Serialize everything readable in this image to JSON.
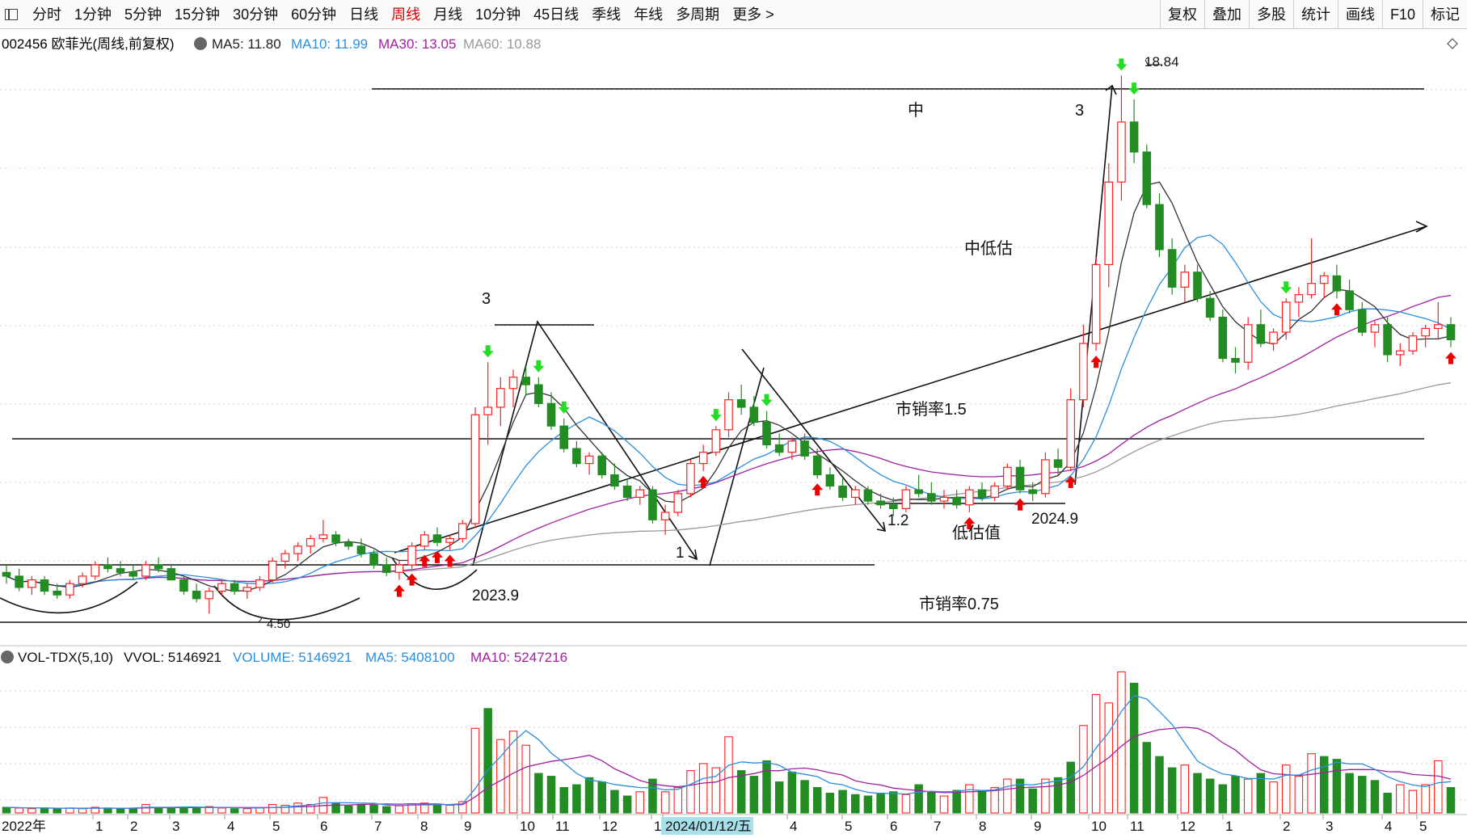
{
  "toolbar": {
    "items": [
      {
        "label": "分时"
      },
      {
        "label": "1分钟"
      },
      {
        "label": "5分钟"
      },
      {
        "label": "15分钟"
      },
      {
        "label": "30分钟"
      },
      {
        "label": "60分钟"
      },
      {
        "label": "日线"
      },
      {
        "label": "周线",
        "active": true
      },
      {
        "label": "月线"
      },
      {
        "label": "10分钟"
      },
      {
        "label": "45日线"
      },
      {
        "label": "季线"
      },
      {
        "label": "年线"
      },
      {
        "label": "多周期"
      },
      {
        "label": "更多 >"
      }
    ],
    "right_items": [
      {
        "label": "复权"
      },
      {
        "label": "叠加"
      },
      {
        "label": "多股"
      },
      {
        "label": "统计"
      },
      {
        "label": "画线"
      },
      {
        "label": "F10"
      },
      {
        "label": "标记"
      }
    ]
  },
  "main_info": {
    "title": "002456 欧菲光(周线,前复权)",
    "ma5": "MA5: 11.80",
    "ma10": "MA10: 11.99",
    "ma30": "MA30: 13.05",
    "ma60": "MA60: 10.88"
  },
  "vol_info": {
    "title": "VOL-TDX(5,10)",
    "vvol": "VVOL: 5146921",
    "volume": "VOLUME: 5146921",
    "ma5": "MA5: 5408100",
    "ma10": "MA10: 5247216"
  },
  "annotations": {
    "high_label": "18.84",
    "low_label": "4.50",
    "zhong": "中",
    "num3_right": "3",
    "zhongdigu": "中低估",
    "num3_left": "3",
    "shixiaolv15": "市销率1.5",
    "num12": "1.2",
    "didigu": "低估值",
    "date2024_9": "2024.9",
    "num1": "1",
    "date2023_9": "2023.9",
    "shixiaolv075": "市销率0.75"
  },
  "x_axis": {
    "year_label": "2022年",
    "ticks": [
      "1",
      "2",
      "3",
      "4",
      "5",
      "6",
      "7",
      "8",
      "9",
      "10",
      "11",
      "12",
      "1",
      "2024/01/12/五",
      "4",
      "5",
      "6",
      "7",
      "8",
      "9",
      "10",
      "11",
      "12",
      "1",
      "2",
      "3",
      "4",
      "5"
    ]
  },
  "colors": {
    "up": "#ff2020",
    "down": "#238c23",
    "ma5": "#333333",
    "ma10": "#2a8fdf",
    "ma30": "#a020a0",
    "ma60": "#999999",
    "buy_arrow": "#ee0000",
    "sell_arrow": "#22dd22"
  },
  "chart_data": {
    "type": "candlestick",
    "title": "002456 欧菲光(周线,前复权)",
    "period": "weekly",
    "x_range": [
      "2022-01",
      "2025-05"
    ],
    "price_range": [
      4.5,
      18.84
    ],
    "annotated_high": 18.84,
    "annotated_low": 4.5,
    "levels": [
      {
        "name": "市销率0.75"
      },
      {
        "name": "市销率1.5"
      },
      {
        "name": "中"
      }
    ],
    "indicators": {
      "MA5": 11.8,
      "MA10": 11.99,
      "MA30": 13.05,
      "MA60": 10.88,
      "VVOL": 5146921,
      "VOLUME": 5146921,
      "VOL_MA5": 5408100,
      "VOL_MA10": 5247216
    },
    "candles": [
      {
        "o": 5.6,
        "h": 5.8,
        "l": 5.3,
        "c": 5.5
      },
      {
        "o": 5.5,
        "h": 5.7,
        "l": 5.1,
        "c": 5.2
      },
      {
        "o": 5.2,
        "h": 5.5,
        "l": 5.0,
        "c": 5.4
      },
      {
        "o": 5.4,
        "h": 5.5,
        "l": 5.0,
        "c": 5.1
      },
      {
        "o": 5.1,
        "h": 5.3,
        "l": 4.9,
        "c": 5.0
      },
      {
        "o": 5.0,
        "h": 5.4,
        "l": 4.9,
        "c": 5.3
      },
      {
        "o": 5.3,
        "h": 5.6,
        "l": 5.2,
        "c": 5.5
      },
      {
        "o": 5.5,
        "h": 5.9,
        "l": 5.4,
        "c": 5.8
      },
      {
        "o": 5.8,
        "h": 6.0,
        "l": 5.6,
        "c": 5.7
      },
      {
        "o": 5.7,
        "h": 5.9,
        "l": 5.5,
        "c": 5.6
      },
      {
        "o": 5.6,
        "h": 5.8,
        "l": 5.4,
        "c": 5.5
      },
      {
        "o": 5.5,
        "h": 5.9,
        "l": 5.4,
        "c": 5.8
      },
      {
        "o": 5.8,
        "h": 6.0,
        "l": 5.6,
        "c": 5.7
      },
      {
        "o": 5.7,
        "h": 5.8,
        "l": 5.4,
        "c": 5.4
      },
      {
        "o": 5.4,
        "h": 5.5,
        "l": 5.0,
        "c": 5.1
      },
      {
        "o": 5.1,
        "h": 5.3,
        "l": 4.8,
        "c": 4.9
      },
      {
        "o": 4.9,
        "h": 5.2,
        "l": 4.5,
        "c": 5.1
      },
      {
        "o": 5.1,
        "h": 5.4,
        "l": 5.0,
        "c": 5.3
      },
      {
        "o": 5.3,
        "h": 5.4,
        "l": 5.0,
        "c": 5.1
      },
      {
        "o": 5.1,
        "h": 5.3,
        "l": 4.9,
        "c": 5.2
      },
      {
        "o": 5.2,
        "h": 5.5,
        "l": 5.1,
        "c": 5.4
      },
      {
        "o": 5.4,
        "h": 6.0,
        "l": 5.3,
        "c": 5.9
      },
      {
        "o": 5.9,
        "h": 6.2,
        "l": 5.7,
        "c": 6.1
      },
      {
        "o": 6.1,
        "h": 6.4,
        "l": 5.9,
        "c": 6.3
      },
      {
        "o": 6.3,
        "h": 6.6,
        "l": 6.1,
        "c": 6.5
      },
      {
        "o": 6.5,
        "h": 7.0,
        "l": 6.4,
        "c": 6.6
      },
      {
        "o": 6.6,
        "h": 6.7,
        "l": 6.3,
        "c": 6.4
      },
      {
        "o": 6.4,
        "h": 6.5,
        "l": 6.2,
        "c": 6.3
      },
      {
        "o": 6.3,
        "h": 6.5,
        "l": 6.0,
        "c": 6.1
      },
      {
        "o": 6.1,
        "h": 6.2,
        "l": 5.7,
        "c": 5.8
      },
      {
        "o": 5.8,
        "h": 6.0,
        "l": 5.5,
        "c": 5.6
      },
      {
        "o": 5.6,
        "h": 5.9,
        "l": 5.4,
        "c": 5.8
      },
      {
        "o": 5.8,
        "h": 6.4,
        "l": 5.7,
        "c": 6.3
      },
      {
        "o": 6.3,
        "h": 6.7,
        "l": 6.2,
        "c": 6.6
      },
      {
        "o": 6.6,
        "h": 6.8,
        "l": 6.3,
        "c": 6.4
      },
      {
        "o": 6.4,
        "h": 6.6,
        "l": 6.2,
        "c": 6.5
      },
      {
        "o": 6.5,
        "h": 7.0,
        "l": 6.4,
        "c": 6.9
      },
      {
        "o": 6.9,
        "h": 10.0,
        "l": 6.8,
        "c": 9.8
      },
      {
        "o": 9.8,
        "h": 11.2,
        "l": 9.0,
        "c": 10.0
      },
      {
        "o": 10.0,
        "h": 10.8,
        "l": 9.5,
        "c": 10.5
      },
      {
        "o": 10.5,
        "h": 11.0,
        "l": 10.0,
        "c": 10.8
      },
      {
        "o": 10.8,
        "h": 11.1,
        "l": 10.3,
        "c": 10.6
      },
      {
        "o": 10.6,
        "h": 10.8,
        "l": 10.0,
        "c": 10.1
      },
      {
        "o": 10.1,
        "h": 10.4,
        "l": 9.4,
        "c": 9.5
      },
      {
        "o": 9.5,
        "h": 9.7,
        "l": 8.8,
        "c": 8.9
      },
      {
        "o": 8.9,
        "h": 9.1,
        "l": 8.4,
        "c": 8.5
      },
      {
        "o": 8.5,
        "h": 8.8,
        "l": 8.2,
        "c": 8.7
      },
      {
        "o": 8.7,
        "h": 8.8,
        "l": 8.1,
        "c": 8.2
      },
      {
        "o": 8.2,
        "h": 8.5,
        "l": 7.8,
        "c": 7.9
      },
      {
        "o": 7.9,
        "h": 8.1,
        "l": 7.5,
        "c": 7.6
      },
      {
        "o": 7.6,
        "h": 7.9,
        "l": 7.4,
        "c": 7.8
      },
      {
        "o": 7.8,
        "h": 7.9,
        "l": 6.9,
        "c": 7.0
      },
      {
        "o": 7.0,
        "h": 7.4,
        "l": 6.6,
        "c": 7.2
      },
      {
        "o": 7.2,
        "h": 7.8,
        "l": 7.1,
        "c": 7.7
      },
      {
        "o": 7.7,
        "h": 8.6,
        "l": 7.6,
        "c": 8.5
      },
      {
        "o": 8.5,
        "h": 9.0,
        "l": 8.3,
        "c": 8.8
      },
      {
        "o": 8.8,
        "h": 9.5,
        "l": 8.7,
        "c": 9.4
      },
      {
        "o": 9.4,
        "h": 10.4,
        "l": 9.2,
        "c": 10.2
      },
      {
        "o": 10.2,
        "h": 10.6,
        "l": 9.8,
        "c": 10.0
      },
      {
        "o": 10.0,
        "h": 10.3,
        "l": 9.5,
        "c": 9.6
      },
      {
        "o": 9.6,
        "h": 9.9,
        "l": 8.9,
        "c": 9.0
      },
      {
        "o": 9.0,
        "h": 9.3,
        "l": 8.7,
        "c": 8.8
      },
      {
        "o": 8.8,
        "h": 9.2,
        "l": 8.6,
        "c": 9.1
      },
      {
        "o": 9.1,
        "h": 9.3,
        "l": 8.6,
        "c": 8.7
      },
      {
        "o": 8.7,
        "h": 8.9,
        "l": 8.1,
        "c": 8.2
      },
      {
        "o": 8.2,
        "h": 8.4,
        "l": 7.8,
        "c": 7.9
      },
      {
        "o": 7.9,
        "h": 8.1,
        "l": 7.5,
        "c": 7.6
      },
      {
        "o": 7.6,
        "h": 7.9,
        "l": 7.4,
        "c": 7.8
      },
      {
        "o": 7.8,
        "h": 7.9,
        "l": 7.4,
        "c": 7.5
      },
      {
        "o": 7.5,
        "h": 7.7,
        "l": 7.3,
        "c": 7.4
      },
      {
        "o": 7.4,
        "h": 7.6,
        "l": 7.1,
        "c": 7.3
      },
      {
        "o": 7.3,
        "h": 7.9,
        "l": 7.2,
        "c": 7.8
      },
      {
        "o": 7.8,
        "h": 8.2,
        "l": 7.6,
        "c": 7.7
      },
      {
        "o": 7.7,
        "h": 8.0,
        "l": 7.4,
        "c": 7.5
      },
      {
        "o": 7.5,
        "h": 7.8,
        "l": 7.3,
        "c": 7.6
      },
      {
        "o": 7.6,
        "h": 7.8,
        "l": 7.3,
        "c": 7.4
      },
      {
        "o": 7.4,
        "h": 7.9,
        "l": 7.2,
        "c": 7.8
      },
      {
        "o": 7.8,
        "h": 8.0,
        "l": 7.5,
        "c": 7.6
      },
      {
        "o": 7.6,
        "h": 8.0,
        "l": 7.5,
        "c": 7.9
      },
      {
        "o": 7.9,
        "h": 8.5,
        "l": 7.8,
        "c": 8.4
      },
      {
        "o": 8.4,
        "h": 8.6,
        "l": 7.7,
        "c": 7.8
      },
      {
        "o": 7.8,
        "h": 8.0,
        "l": 7.5,
        "c": 7.7
      },
      {
        "o": 7.7,
        "h": 8.8,
        "l": 7.6,
        "c": 8.6
      },
      {
        "o": 8.6,
        "h": 8.9,
        "l": 8.2,
        "c": 8.4
      },
      {
        "o": 8.4,
        "h": 10.5,
        "l": 8.3,
        "c": 10.2
      },
      {
        "o": 10.2,
        "h": 12.2,
        "l": 10.0,
        "c": 11.7
      },
      {
        "o": 11.7,
        "h": 14.0,
        "l": 11.5,
        "c": 13.8
      },
      {
        "o": 13.8,
        "h": 16.5,
        "l": 13.2,
        "c": 16.0
      },
      {
        "o": 16.0,
        "h": 18.84,
        "l": 15.5,
        "c": 17.6
      },
      {
        "o": 17.6,
        "h": 18.2,
        "l": 16.5,
        "c": 16.8
      },
      {
        "o": 16.8,
        "h": 17.0,
        "l": 15.3,
        "c": 15.4
      },
      {
        "o": 15.4,
        "h": 15.7,
        "l": 14.0,
        "c": 14.2
      },
      {
        "o": 14.2,
        "h": 14.5,
        "l": 13.0,
        "c": 13.2
      },
      {
        "o": 13.2,
        "h": 13.8,
        "l": 12.8,
        "c": 13.6
      },
      {
        "o": 13.6,
        "h": 13.8,
        "l": 12.8,
        "c": 12.9
      },
      {
        "o": 12.9,
        "h": 13.1,
        "l": 12.3,
        "c": 12.4
      },
      {
        "o": 12.4,
        "h": 12.6,
        "l": 11.2,
        "c": 11.3
      },
      {
        "o": 11.3,
        "h": 11.6,
        "l": 10.9,
        "c": 11.2
      },
      {
        "o": 11.2,
        "h": 12.4,
        "l": 11.0,
        "c": 12.2
      },
      {
        "o": 12.2,
        "h": 12.6,
        "l": 11.6,
        "c": 11.7
      },
      {
        "o": 11.7,
        "h": 12.1,
        "l": 11.5,
        "c": 12.0
      },
      {
        "o": 12.0,
        "h": 12.9,
        "l": 11.8,
        "c": 12.8
      },
      {
        "o": 12.8,
        "h": 13.2,
        "l": 12.4,
        "c": 13.0
      },
      {
        "o": 13.0,
        "h": 14.5,
        "l": 12.9,
        "c": 13.3
      },
      {
        "o": 13.3,
        "h": 13.6,
        "l": 12.9,
        "c": 13.5
      },
      {
        "o": 13.5,
        "h": 13.8,
        "l": 12.9,
        "c": 13.1
      },
      {
        "o": 13.1,
        "h": 13.4,
        "l": 12.5,
        "c": 12.6
      },
      {
        "o": 12.6,
        "h": 12.8,
        "l": 11.9,
        "c": 12.0
      },
      {
        "o": 12.0,
        "h": 12.3,
        "l": 11.6,
        "c": 12.2
      },
      {
        "o": 12.2,
        "h": 12.4,
        "l": 11.2,
        "c": 11.4
      },
      {
        "o": 11.4,
        "h": 11.7,
        "l": 11.1,
        "c": 11.5
      },
      {
        "o": 11.5,
        "h": 12.0,
        "l": 11.4,
        "c": 11.9
      },
      {
        "o": 11.9,
        "h": 12.2,
        "l": 11.6,
        "c": 12.1
      },
      {
        "o": 12.1,
        "h": 12.8,
        "l": 11.8,
        "c": 12.2
      },
      {
        "o": 12.2,
        "h": 12.4,
        "l": 11.6,
        "c": 11.8
      }
    ],
    "volume": [
      {
        "v": 0.4,
        "up": false
      },
      {
        "v": 0.35,
        "up": true
      },
      {
        "v": 0.3,
        "up": true
      },
      {
        "v": 0.35,
        "up": false
      },
      {
        "v": 0.3,
        "up": false
      },
      {
        "v": 0.35,
        "up": true
      },
      {
        "v": 0.3,
        "up": true
      },
      {
        "v": 0.4,
        "up": true
      },
      {
        "v": 0.35,
        "up": false
      },
      {
        "v": 0.3,
        "up": false
      },
      {
        "v": 0.35,
        "up": false
      },
      {
        "v": 0.6,
        "up": true
      },
      {
        "v": 0.4,
        "up": false
      },
      {
        "v": 0.35,
        "up": false
      },
      {
        "v": 0.4,
        "up": false
      },
      {
        "v": 0.35,
        "up": false
      },
      {
        "v": 0.45,
        "up": true
      },
      {
        "v": 0.35,
        "up": true
      },
      {
        "v": 0.3,
        "up": false
      },
      {
        "v": 0.3,
        "up": true
      },
      {
        "v": 0.35,
        "up": true
      },
      {
        "v": 0.6,
        "up": true
      },
      {
        "v": 0.55,
        "up": true
      },
      {
        "v": 0.7,
        "up": true
      },
      {
        "v": 0.6,
        "up": true
      },
      {
        "v": 1.1,
        "up": true
      },
      {
        "v": 0.7,
        "up": false
      },
      {
        "v": 0.5,
        "up": false
      },
      {
        "v": 0.6,
        "up": false
      },
      {
        "v": 0.55,
        "up": false
      },
      {
        "v": 0.45,
        "up": false
      },
      {
        "v": 0.5,
        "up": true
      },
      {
        "v": 0.65,
        "up": true
      },
      {
        "v": 0.7,
        "up": true
      },
      {
        "v": 0.6,
        "up": false
      },
      {
        "v": 0.55,
        "up": true
      },
      {
        "v": 0.8,
        "up": true
      },
      {
        "v": 6.0,
        "up": true
      },
      {
        "v": 7.4,
        "up": false
      },
      {
        "v": 5.2,
        "up": true
      },
      {
        "v": 5.8,
        "up": true
      },
      {
        "v": 4.8,
        "up": true
      },
      {
        "v": 2.8,
        "up": false
      },
      {
        "v": 2.6,
        "up": false
      },
      {
        "v": 1.8,
        "up": false
      },
      {
        "v": 2.0,
        "up": false
      },
      {
        "v": 2.5,
        "up": false
      },
      {
        "v": 2.2,
        "up": false
      },
      {
        "v": 1.6,
        "up": false
      },
      {
        "v": 1.2,
        "up": false
      },
      {
        "v": 1.5,
        "up": true
      },
      {
        "v": 2.4,
        "up": false
      },
      {
        "v": 1.5,
        "up": true
      },
      {
        "v": 1.8,
        "up": true
      },
      {
        "v": 3.0,
        "up": true
      },
      {
        "v": 3.5,
        "up": true
      },
      {
        "v": 3.2,
        "up": true
      },
      {
        "v": 5.4,
        "up": true
      },
      {
        "v": 3.0,
        "up": false
      },
      {
        "v": 2.6,
        "up": false
      },
      {
        "v": 3.7,
        "up": false
      },
      {
        "v": 2.2,
        "up": false
      },
      {
        "v": 2.9,
        "up": false
      },
      {
        "v": 2.3,
        "up": false
      },
      {
        "v": 1.8,
        "up": false
      },
      {
        "v": 1.4,
        "up": false
      },
      {
        "v": 1.6,
        "up": false
      },
      {
        "v": 1.3,
        "up": false
      },
      {
        "v": 1.2,
        "up": false
      },
      {
        "v": 1.4,
        "up": false
      },
      {
        "v": 1.5,
        "up": false
      },
      {
        "v": 1.3,
        "up": true
      },
      {
        "v": 2.0,
        "up": false
      },
      {
        "v": 1.5,
        "up": false
      },
      {
        "v": 1.2,
        "up": true
      },
      {
        "v": 1.6,
        "up": false
      },
      {
        "v": 2.0,
        "up": true
      },
      {
        "v": 1.6,
        "up": false
      },
      {
        "v": 1.8,
        "up": true
      },
      {
        "v": 2.4,
        "up": true
      },
      {
        "v": 2.4,
        "up": false
      },
      {
        "v": 1.7,
        "up": false
      },
      {
        "v": 2.4,
        "up": true
      },
      {
        "v": 2.5,
        "up": false
      },
      {
        "v": 3.6,
        "up": false
      },
      {
        "v": 6.2,
        "up": true
      },
      {
        "v": 8.4,
        "up": true
      },
      {
        "v": 7.8,
        "up": true
      },
      {
        "v": 10.0,
        "up": true
      },
      {
        "v": 9.2,
        "up": false
      },
      {
        "v": 5.0,
        "up": false
      },
      {
        "v": 4.0,
        "up": false
      },
      {
        "v": 3.2,
        "up": false
      },
      {
        "v": 3.4,
        "up": true
      },
      {
        "v": 2.8,
        "up": false
      },
      {
        "v": 2.4,
        "up": false
      },
      {
        "v": 2.0,
        "up": false
      },
      {
        "v": 2.6,
        "up": false
      },
      {
        "v": 2.4,
        "up": true
      },
      {
        "v": 2.8,
        "up": false
      },
      {
        "v": 2.2,
        "up": true
      },
      {
        "v": 3.4,
        "up": true
      },
      {
        "v": 2.6,
        "up": true
      },
      {
        "v": 4.2,
        "up": true
      },
      {
        "v": 4.0,
        "up": false
      },
      {
        "v": 3.8,
        "up": false
      },
      {
        "v": 2.8,
        "up": false
      },
      {
        "v": 2.6,
        "up": false
      },
      {
        "v": 2.3,
        "up": false
      },
      {
        "v": 1.4,
        "up": false
      },
      {
        "v": 2.0,
        "up": true
      },
      {
        "v": 1.6,
        "up": true
      },
      {
        "v": 2.0,
        "up": true
      },
      {
        "v": 3.7,
        "up": true
      },
      {
        "v": 1.8,
        "up": false
      }
    ]
  }
}
